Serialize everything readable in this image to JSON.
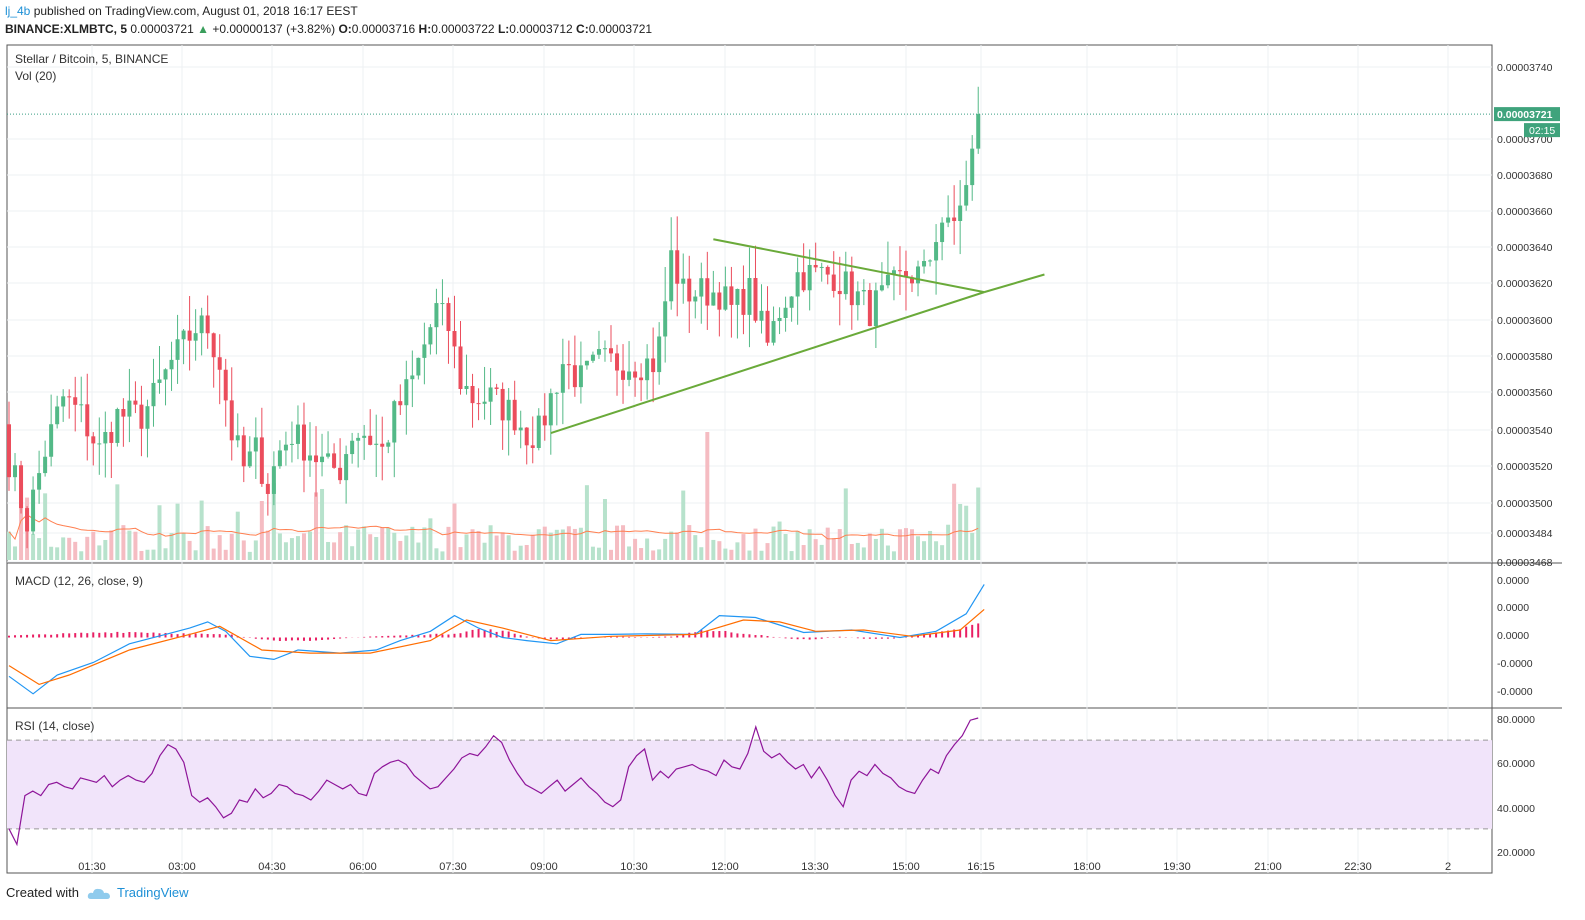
{
  "header": {
    "user": "lj_4b",
    "published": "published on TradingView.com, August 01, 2018 16:17 EEST",
    "symbol": "BINANCE:XLMBTC, 5",
    "last": "0.00003721",
    "change": "+0.00000137 (+3.82%)",
    "o_label": "O:",
    "o": "0.00003716",
    "h_label": "H:",
    "h": "0.00003722",
    "l_label": "L:",
    "l": "0.00003712",
    "c_label": "C:",
    "c": "0.00003721"
  },
  "footer": {
    "created": "Created with",
    "brand": "TradingView"
  },
  "colors": {
    "up": "#53b987",
    "down": "#eb4d5c",
    "trend": "#6aaa3a",
    "macd": "#2196f3",
    "signal": "#ff6d00",
    "hist": "#e91e63",
    "rsi": "#8e1599",
    "rsi_band": "#f1e4fa",
    "vol_ma": "#ff7f50"
  },
  "chart_data": [
    {
      "type": "candlestick",
      "title": "Stellar / Bitcoin, 5, BINANCE",
      "volume_label": "Vol (20)",
      "x_ticks": [
        "01:30",
        "03:00",
        "04:30",
        "06:00",
        "07:30",
        "09:00",
        "10:30",
        "12:00",
        "13:30",
        "15:00",
        "16:15",
        "18:00",
        "19:30",
        "21:00",
        "22:30",
        "2"
      ],
      "y_ticks": [
        "0.00003740",
        "0.00003700",
        "0.00003680",
        "0.00003660",
        "0.00003640",
        "0.00003620",
        "0.00003600",
        "0.00003580",
        "0.00003560",
        "0.00003540",
        "0.00003520",
        "0.00003500",
        "0.00003484",
        "0.00003468"
      ],
      "ylim": [
        3.468e-05,
        3.75e-05
      ],
      "last_price_label": "0.00003721",
      "countdown_label": "02:15",
      "close_path": [
        [
          0,
          3.525e-05
        ],
        [
          3,
          3.49e-05
        ],
        [
          6,
          3.53e-05
        ],
        [
          9,
          3.56e-05
        ],
        [
          12,
          3.55e-05
        ],
        [
          15,
          3.53e-05
        ],
        [
          18,
          3.55e-05
        ],
        [
          22,
          3.55e-05
        ],
        [
          24,
          3.56e-05
        ],
        [
          27,
          3.58e-05
        ],
        [
          29,
          3.59e-05
        ],
        [
          31,
          3.6e-05
        ],
        [
          33,
          3.6e-05
        ],
        [
          35,
          3.58e-05
        ],
        [
          37,
          3.54e-05
        ],
        [
          39,
          3.52e-05
        ],
        [
          41,
          3.53e-05
        ],
        [
          43,
          3.51e-05
        ],
        [
          45,
          3.53e-05
        ],
        [
          47,
          3.54e-05
        ],
        [
          50,
          3.53e-05
        ],
        [
          53,
          3.52e-05
        ],
        [
          55,
          3.52e-05
        ],
        [
          57,
          3.54e-05
        ],
        [
          59,
          3.54e-05
        ],
        [
          62,
          3.53e-05
        ],
        [
          64,
          3.55e-05
        ],
        [
          67,
          3.57e-05
        ],
        [
          69,
          3.59e-05
        ],
        [
          71,
          3.61e-05
        ],
        [
          73,
          3.6e-05
        ],
        [
          75,
          3.57e-05
        ],
        [
          77,
          3.56e-05
        ],
        [
          80,
          3.56e-05
        ],
        [
          84,
          3.55e-05
        ],
        [
          86,
          3.54e-05
        ],
        [
          88,
          3.54e-05
        ],
        [
          90,
          3.56e-05
        ],
        [
          92,
          3.58e-05
        ],
        [
          95,
          3.57e-05
        ],
        [
          98,
          3.58e-05
        ],
        [
          101,
          3.58e-05
        ],
        [
          105,
          3.58e-05
        ],
        [
          107,
          3.58e-05
        ],
        [
          108,
          3.59e-05
        ],
        [
          110,
          3.64e-05
        ],
        [
          112,
          3.62e-05
        ],
        [
          115,
          3.62e-05
        ],
        [
          118,
          3.62e-05
        ],
        [
          120,
          3.61e-05
        ],
        [
          123,
          3.62e-05
        ],
        [
          126,
          3.59e-05
        ],
        [
          128,
          3.61e-05
        ],
        [
          131,
          3.63e-05
        ],
        [
          134,
          3.63e-05
        ],
        [
          137,
          3.63e-05
        ],
        [
          140,
          3.62e-05
        ],
        [
          143,
          3.61e-05
        ],
        [
          146,
          3.62e-05
        ],
        [
          149,
          3.63e-05
        ],
        [
          152,
          3.63e-05
        ],
        [
          155,
          3.66e-05
        ],
        [
          157,
          3.66e-05
        ],
        [
          159,
          3.68e-05
        ],
        [
          161,
          3.72e-05
        ]
      ],
      "trendlines": [
        {
          "from": [
            90,
            3.54e-05
          ],
          "to": [
            162,
            3.62e-05
          ]
        },
        {
          "from": [
            117,
            3.65e-05
          ],
          "to": [
            162,
            3.62e-05
          ]
        },
        {
          "from": [
            162,
            3.62e-05
          ],
          "to": [
            172,
            3.63e-05
          ]
        }
      ]
    },
    {
      "type": "line",
      "title": "MACD (12, 26, close, 9)",
      "y_ticks": [
        "0.0000",
        "0.0000",
        "0.0000",
        "-0.0000",
        "-0.0000"
      ],
      "ylim": [
        -1.0,
        1.0
      ],
      "series": [
        {
          "role": "macd",
          "points": [
            [
              0,
              -0.62
            ],
            [
              4,
              -0.9
            ],
            [
              8,
              -0.6
            ],
            [
              14,
              -0.4
            ],
            [
              20,
              -0.1
            ],
            [
              26,
              0.05
            ],
            [
              30,
              0.15
            ],
            [
              33,
              0.25
            ],
            [
              36,
              0.1
            ],
            [
              40,
              -0.3
            ],
            [
              44,
              -0.35
            ],
            [
              48,
              -0.2
            ],
            [
              55,
              -0.25
            ],
            [
              61,
              -0.2
            ],
            [
              65,
              -0.05
            ],
            [
              70,
              0.1
            ],
            [
              74,
              0.35
            ],
            [
              78,
              0.15
            ],
            [
              82,
              0.0
            ],
            [
              86,
              -0.05
            ],
            [
              91,
              -0.1
            ],
            [
              95,
              0.05
            ],
            [
              100,
              0.05
            ],
            [
              106,
              0.06
            ],
            [
              114,
              0.05
            ],
            [
              118,
              0.35
            ],
            [
              124,
              0.32
            ],
            [
              128,
              0.2
            ],
            [
              132,
              0.08
            ],
            [
              140,
              0.12
            ],
            [
              148,
              0.0
            ],
            [
              154,
              0.1
            ],
            [
              159,
              0.38
            ],
            [
              162,
              0.85
            ]
          ]
        },
        {
          "role": "signal",
          "points": [
            [
              0,
              -0.45
            ],
            [
              5,
              -0.75
            ],
            [
              10,
              -0.6
            ],
            [
              20,
              -0.2
            ],
            [
              30,
              0.05
            ],
            [
              35,
              0.18
            ],
            [
              42,
              -0.2
            ],
            [
              50,
              -0.25
            ],
            [
              60,
              -0.25
            ],
            [
              70,
              -0.05
            ],
            [
              76,
              0.28
            ],
            [
              82,
              0.15
            ],
            [
              90,
              -0.05
            ],
            [
              100,
              0.02
            ],
            [
              114,
              0.05
            ],
            [
              122,
              0.28
            ],
            [
              128,
              0.25
            ],
            [
              134,
              0.1
            ],
            [
              142,
              0.12
            ],
            [
              150,
              0.02
            ],
            [
              158,
              0.12
            ],
            [
              162,
              0.45
            ]
          ]
        }
      ],
      "histogram": [
        0.1,
        0.15,
        0.2,
        0.25,
        0.3,
        0.28,
        0.22,
        0.18,
        0.15,
        -0.1,
        -0.2,
        -0.15,
        -0.05,
        0.05,
        0.1,
        0.15,
        0.2,
        0.45,
        0.3,
        -0.05,
        -0.12,
        0.02,
        0.05,
        0.01,
        0.06,
        0.4,
        0.3,
        0.15,
        -0.05,
        -0.12,
        0.05,
        -0.08,
        -0.05,
        0.15,
        0.35,
        0.7
      ]
    },
    {
      "type": "line",
      "title": "RSI (14, close)",
      "y_ticks": [
        "80.0000",
        "60.0000",
        "40.0000",
        "20.0000"
      ],
      "ylim": [
        20,
        82
      ],
      "bands": [
        30,
        70
      ],
      "values": [
        30,
        23,
        45,
        47,
        45,
        50,
        51,
        49,
        48,
        53,
        52,
        51,
        54,
        49,
        52,
        54,
        52,
        51,
        55,
        63,
        68,
        66,
        60,
        45,
        42,
        44,
        40,
        35,
        37,
        43,
        42,
        48,
        44,
        46,
        50,
        49,
        46,
        45,
        43,
        47,
        52,
        50,
        48,
        50,
        46,
        45,
        55,
        58,
        60,
        61,
        59,
        54,
        51,
        48,
        49,
        53,
        57,
        62,
        64,
        63,
        67,
        72,
        69,
        61,
        55,
        50,
        48,
        46,
        49,
        52,
        47,
        50,
        53,
        49,
        46,
        42,
        40,
        43,
        58,
        63,
        66,
        52,
        56,
        53,
        57,
        58,
        59,
        57,
        56,
        54,
        61,
        58,
        57,
        64,
        76,
        65,
        62,
        64,
        60,
        57,
        59,
        53,
        58,
        52,
        45,
        40,
        52,
        56,
        54,
        59,
        55,
        53,
        49,
        47,
        46,
        52,
        57,
        55,
        63,
        68,
        72,
        79,
        80
      ]
    }
  ]
}
